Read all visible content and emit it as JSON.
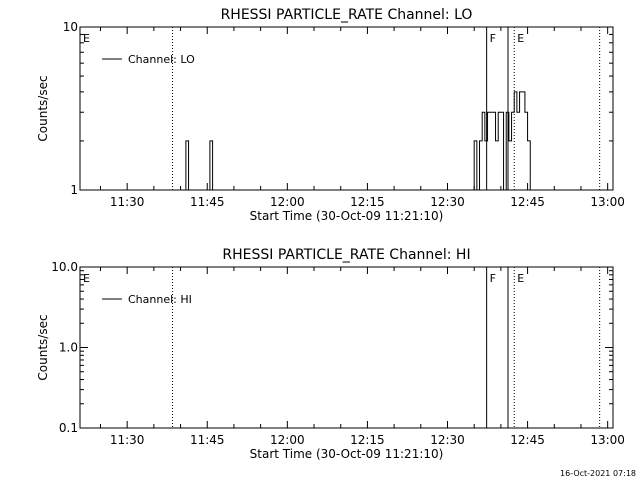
{
  "timestamp": "16-Oct-2021 07:18",
  "chart_data": [
    {
      "type": "line",
      "title": "RHESSI PARTICLE_RATE Channel: LO",
      "xlabel": "Start Time (30-Oct-09 11:21:10)",
      "ylabel": "Counts/sec",
      "yscale": "log",
      "xlim": [
        "11:21:10",
        "13:01:00"
      ],
      "ylim": [
        1,
        10
      ],
      "x_ticks": [
        "11:30",
        "11:45",
        "12:00",
        "12:15",
        "12:30",
        "12:45",
        "13:00"
      ],
      "y_ticks": [
        "1",
        "10"
      ],
      "legend": {
        "label": "Channel: LO",
        "placement": "top-left"
      },
      "series": [
        {
          "name": "Channel: LO",
          "x": [
            "11:40:30",
            "11:41:00",
            "11:41:30",
            "11:42:00",
            "11:45:00",
            "11:45:30",
            "11:46:00",
            "11:46:30",
            "12:34:30",
            "12:35:00",
            "12:35:30",
            "12:36:00",
            "12:36:30",
            "12:37:00",
            "12:37:30",
            "12:38:00",
            "12:38:30",
            "12:39:00",
            "12:39:30",
            "12:40:00",
            "12:40:30",
            "12:41:00",
            "12:41:30",
            "12:42:00",
            "12:42:30",
            "12:43:00",
            "12:43:30",
            "12:44:00",
            "12:44:30",
            "12:45:00",
            "12:45:30",
            "12:46:00"
          ],
          "values": [
            1,
            2,
            1,
            1,
            1,
            2,
            1,
            1,
            1,
            2,
            1,
            2,
            3,
            2,
            3,
            3,
            3,
            2,
            3,
            3,
            1,
            3,
            2,
            3,
            4,
            3,
            4,
            4,
            3,
            2,
            1,
            1
          ]
        }
      ],
      "annotations": [
        {
          "label": "E",
          "time": "11:21:10",
          "style": "solid"
        },
        {
          "label": "",
          "time": "11:38:30",
          "style": "dotted"
        },
        {
          "label": "F",
          "time": "12:37:20",
          "style": "solid"
        },
        {
          "label": "",
          "time": "12:41:20",
          "style": "solid"
        },
        {
          "label": "E",
          "time": "12:42:30",
          "style": "dotted"
        },
        {
          "label": "",
          "time": "12:58:30",
          "style": "dotted"
        }
      ]
    },
    {
      "type": "line",
      "title": "RHESSI PARTICLE_RATE Channel: HI",
      "xlabel": "Start Time (30-Oct-09 11:21:10)",
      "ylabel": "Counts/sec",
      "yscale": "log",
      "xlim": [
        "11:21:10",
        "13:01:00"
      ],
      "ylim": [
        0.1,
        10
      ],
      "x_ticks": [
        "11:30",
        "11:45",
        "12:00",
        "12:15",
        "12:30",
        "12:45",
        "13:00"
      ],
      "y_ticks": [
        "0.1",
        "1.0",
        "10.0"
      ],
      "legend": {
        "label": "Channel: HI",
        "placement": "top-left"
      },
      "series": [
        {
          "name": "Channel: HI",
          "x": [],
          "values": []
        }
      ],
      "annotations": [
        {
          "label": "E",
          "time": "11:21:10",
          "style": "solid"
        },
        {
          "label": "",
          "time": "11:38:30",
          "style": "dotted"
        },
        {
          "label": "F",
          "time": "12:37:20",
          "style": "solid"
        },
        {
          "label": "",
          "time": "12:41:20",
          "style": "solid"
        },
        {
          "label": "E",
          "time": "12:42:30",
          "style": "dotted"
        },
        {
          "label": "",
          "time": "12:58:30",
          "style": "dotted"
        }
      ]
    }
  ]
}
